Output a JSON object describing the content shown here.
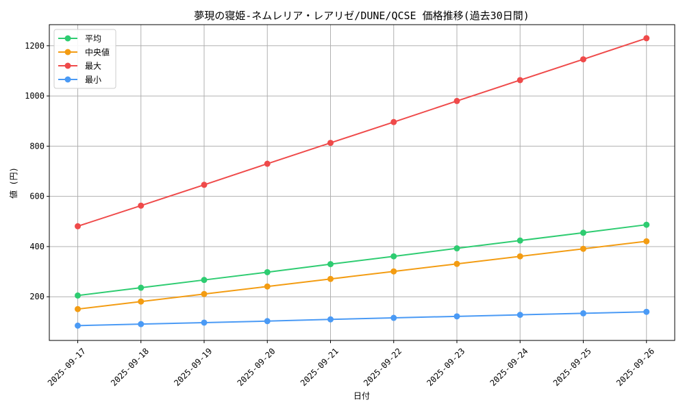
{
  "chart_data": {
    "type": "line",
    "title": "夢現の寝姫-ネムレリア・レアリゼ/DUNE/QCSE 価格推移(過去30日間)",
    "xlabel": "日付",
    "ylabel": "値 (円)",
    "categories": [
      "2025-09-17",
      "2025-09-18",
      "2025-09-19",
      "2025-09-20",
      "2025-09-21",
      "2025-09-22",
      "2025-09-23",
      "2025-09-24",
      "2025-09-25",
      "2025-09-26"
    ],
    "ylim": [
      26,
      1284
    ],
    "yticks": [
      200,
      400,
      600,
      800,
      1000,
      1200
    ],
    "grid": true,
    "legend_position": "top-left",
    "series": [
      {
        "name": "平均",
        "color": "#2ecc71",
        "values": [
          205,
          236,
          267,
          298,
          330,
          361,
          393,
          424,
          455,
          487
        ]
      },
      {
        "name": "中央値",
        "color": "#f39c12",
        "values": [
          151,
          181,
          211,
          241,
          271,
          301,
          331,
          361,
          391,
          421
        ]
      },
      {
        "name": "最大",
        "color": "#ef4a4a",
        "values": [
          481,
          563,
          646,
          730,
          813,
          896,
          980,
          1063,
          1146,
          1230
        ]
      },
      {
        "name": "最小",
        "color": "#4a9af5",
        "values": [
          85,
          91,
          97,
          103,
          110,
          116,
          122,
          128,
          134,
          140
        ]
      }
    ]
  }
}
